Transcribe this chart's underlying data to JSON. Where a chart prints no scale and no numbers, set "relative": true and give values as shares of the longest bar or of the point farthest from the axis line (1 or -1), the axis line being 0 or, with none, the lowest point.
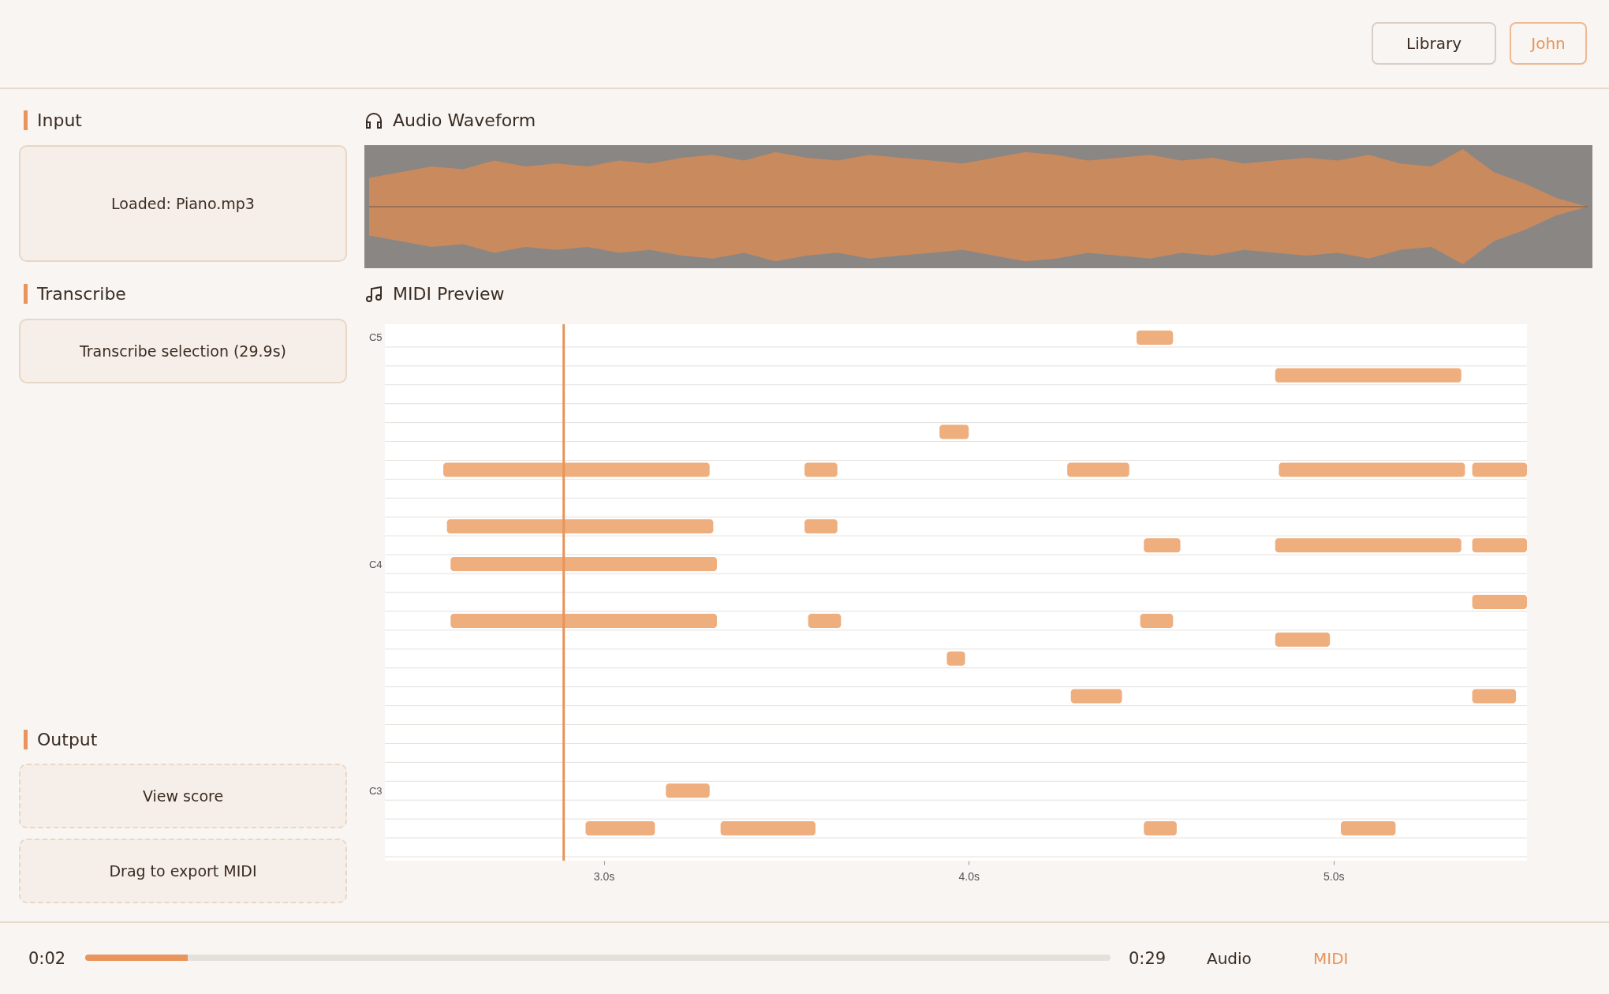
{
  "chart_data": [
    {
      "type": "area",
      "title": "Audio Waveform",
      "relative": true,
      "color": "#c98a5e",
      "categories": [
        null,
        null,
        null,
        null,
        null,
        null,
        null,
        null,
        null,
        null,
        null,
        null,
        null,
        null,
        null,
        null,
        null,
        null,
        null,
        null,
        null,
        null,
        null,
        null,
        null,
        null,
        null,
        null,
        null,
        null,
        null,
        null,
        null,
        null,
        null,
        null,
        null,
        null,
        null,
        null
      ],
      "values": [
        0.5,
        0.6,
        0.7,
        0.65,
        0.8,
        0.7,
        0.75,
        0.7,
        0.8,
        0.75,
        0.85,
        0.9,
        0.8,
        0.95,
        0.85,
        0.8,
        0.9,
        0.85,
        0.8,
        0.75,
        0.85,
        0.95,
        0.9,
        0.8,
        0.85,
        0.9,
        0.8,
        0.85,
        0.75,
        0.8,
        0.85,
        0.8,
        0.9,
        0.75,
        0.7,
        1.0,
        0.6,
        0.4,
        0.15,
        0
      ]
    },
    {
      "type": "bar",
      "orientation": "horizontal",
      "title": "MIDI Preview",
      "grid": "y",
      "categories": [
        "C5",
        null,
        null,
        null,
        null,
        null,
        null,
        null,
        null,
        null,
        null,
        null,
        "C4",
        null,
        null,
        null,
        null,
        null,
        null,
        null,
        null,
        null,
        null,
        null,
        "C3",
        null,
        null,
        null
      ],
      "xlim": [
        2.4,
        5.53
      ],
      "xticks": [
        {
          "value": 3,
          "label": "3.0s"
        },
        {
          "value": 4,
          "label": "4.0s"
        },
        {
          "value": 5,
          "label": "5.0s"
        }
      ],
      "ref_lines": [
        {
          "axis": "x",
          "value": 2.89,
          "color": "#e8945a"
        }
      ],
      "series": [
        {
          "color": "#efae7d",
          "base": [
            4.46,
            null,
            4.84,
            null,
            null,
            3.92,
            null,
            2.56,
            null,
            null,
            2.57,
            4.48,
            2.58,
            null,
            5.38,
            2.58,
            4.84,
            3.94,
            null,
            4.28,
            null,
            null,
            null,
            null,
            3.17,
            null,
            2.95,
            null
          ],
          "values": [
            0.1,
            null,
            0.51,
            null,
            null,
            0.08,
            null,
            0.73,
            null,
            null,
            0.73,
            0.1,
            0.73,
            null,
            0.15,
            0.73,
            0.15,
            0.05,
            null,
            0.14,
            null,
            null,
            null,
            null,
            0.12,
            null,
            0.19,
            null
          ]
        },
        {
          "color": "#efae7d",
          "base": [
            null,
            null,
            null,
            null,
            null,
            null,
            null,
            3.55,
            null,
            null,
            3.55,
            4.84,
            null,
            null,
            null,
            3.56,
            null,
            null,
            null,
            5.38,
            null,
            null,
            null,
            null,
            null,
            null,
            3.32,
            null
          ],
          "values": [
            null,
            null,
            null,
            null,
            null,
            null,
            null,
            0.09,
            null,
            null,
            0.09,
            0.51,
            null,
            null,
            null,
            0.09,
            null,
            null,
            null,
            0.12,
            null,
            null,
            null,
            null,
            null,
            null,
            0.26,
            null
          ]
        },
        {
          "color": "#efae7d",
          "base": [
            null,
            null,
            null,
            null,
            null,
            null,
            null,
            4.27,
            null,
            null,
            null,
            5.38,
            null,
            null,
            null,
            4.47,
            null,
            null,
            null,
            null,
            null,
            null,
            null,
            null,
            null,
            null,
            4.48,
            null
          ],
          "values": [
            null,
            null,
            null,
            null,
            null,
            null,
            null,
            0.17,
            null,
            null,
            null,
            0.15,
            null,
            null,
            null,
            0.09,
            null,
            null,
            null,
            null,
            null,
            null,
            null,
            null,
            null,
            null,
            0.09,
            null
          ]
        },
        {
          "color": "#efae7d",
          "base": [
            null,
            null,
            null,
            null,
            null,
            null,
            null,
            4.85,
            null,
            null,
            null,
            null,
            null,
            null,
            null,
            null,
            null,
            null,
            null,
            null,
            null,
            null,
            null,
            null,
            null,
            null,
            5.02,
            null
          ],
          "values": [
            null,
            null,
            null,
            null,
            null,
            null,
            null,
            0.51,
            null,
            null,
            null,
            null,
            null,
            null,
            null,
            null,
            null,
            null,
            null,
            null,
            null,
            null,
            null,
            null,
            null,
            null,
            0.15,
            null
          ]
        },
        {
          "color": "#efae7d",
          "base": [
            null,
            null,
            null,
            null,
            null,
            null,
            null,
            5.38,
            null,
            null,
            null,
            null,
            null,
            null,
            null,
            null,
            null,
            null,
            null,
            null,
            null,
            null,
            null,
            null,
            null,
            null,
            null,
            null
          ],
          "values": [
            null,
            null,
            null,
            null,
            null,
            null,
            null,
            0.15,
            null,
            null,
            null,
            null,
            null,
            null,
            null,
            null,
            null,
            null,
            null,
            null,
            null,
            null,
            null,
            null,
            null,
            null,
            null,
            null
          ]
        }
      ],
      "annotations": [
        "Input",
        "Loaded: Piano.mp3",
        "Transcribe",
        "Transcribe selection (29.9s)",
        "Output",
        "View score",
        "Drag to export MIDI",
        "Library",
        "John",
        "0:02",
        "0:29",
        "Audio",
        "MIDI"
      ]
    }
  ]
}
